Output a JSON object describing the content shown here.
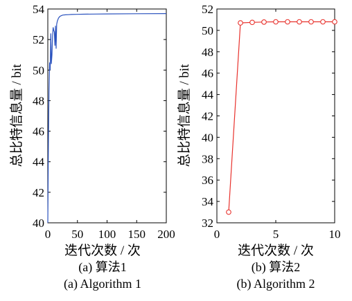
{
  "chart_data": [
    {
      "type": "line",
      "subplot_label": "(a) 算法1",
      "subplot_label_en": "(a) Algorithm 1",
      "xlabel": "迭代次数 / 次",
      "ylabel": "总比特信息量 / bit",
      "xlim": [
        0,
        200
      ],
      "ylim": [
        40,
        54
      ],
      "xticks": [
        0,
        50,
        100,
        150,
        200
      ],
      "yticks": [
        40,
        42,
        44,
        46,
        48,
        50,
        52,
        54
      ],
      "grid": false,
      "series": [
        {
          "color": "#2a52be",
          "x": [
            0,
            1,
            2,
            3,
            4,
            5,
            6,
            7,
            8,
            9,
            10,
            11,
            12,
            13,
            14,
            15,
            16,
            18,
            20,
            22,
            25,
            30,
            35,
            40,
            50,
            60,
            80,
            100,
            150,
            200
          ],
          "y": [
            40.0,
            45.5,
            48.5,
            50.5,
            50.0,
            52.4,
            50.4,
            51.0,
            52.2,
            52.8,
            52.6,
            52.5,
            51.6,
            52.9,
            51.4,
            53.0,
            53.2,
            53.4,
            53.5,
            53.55,
            53.6,
            53.62,
            53.63,
            53.64,
            53.65,
            53.66,
            53.67,
            53.68,
            53.69,
            53.7
          ]
        }
      ]
    },
    {
      "type": "line",
      "subplot_label": "(b) 算法2",
      "subplot_label_en": "(b) Algorithm 2",
      "xlabel": "迭代次数 / 次",
      "ylabel": "总比特信息量 / bit",
      "xlim": [
        0,
        10
      ],
      "ylim": [
        32,
        52
      ],
      "xticks": [
        0,
        5,
        10
      ],
      "yticks": [
        32,
        34,
        36,
        38,
        40,
        42,
        44,
        46,
        48,
        50,
        52
      ],
      "grid": false,
      "series": [
        {
          "color": "#e8312c",
          "marker": "circle",
          "x": [
            1,
            2,
            3,
            4,
            5,
            6,
            7,
            8,
            9,
            10
          ],
          "y": [
            33.0,
            50.7,
            50.75,
            50.78,
            50.8,
            50.8,
            50.8,
            50.8,
            50.8,
            50.8
          ]
        }
      ]
    }
  ]
}
